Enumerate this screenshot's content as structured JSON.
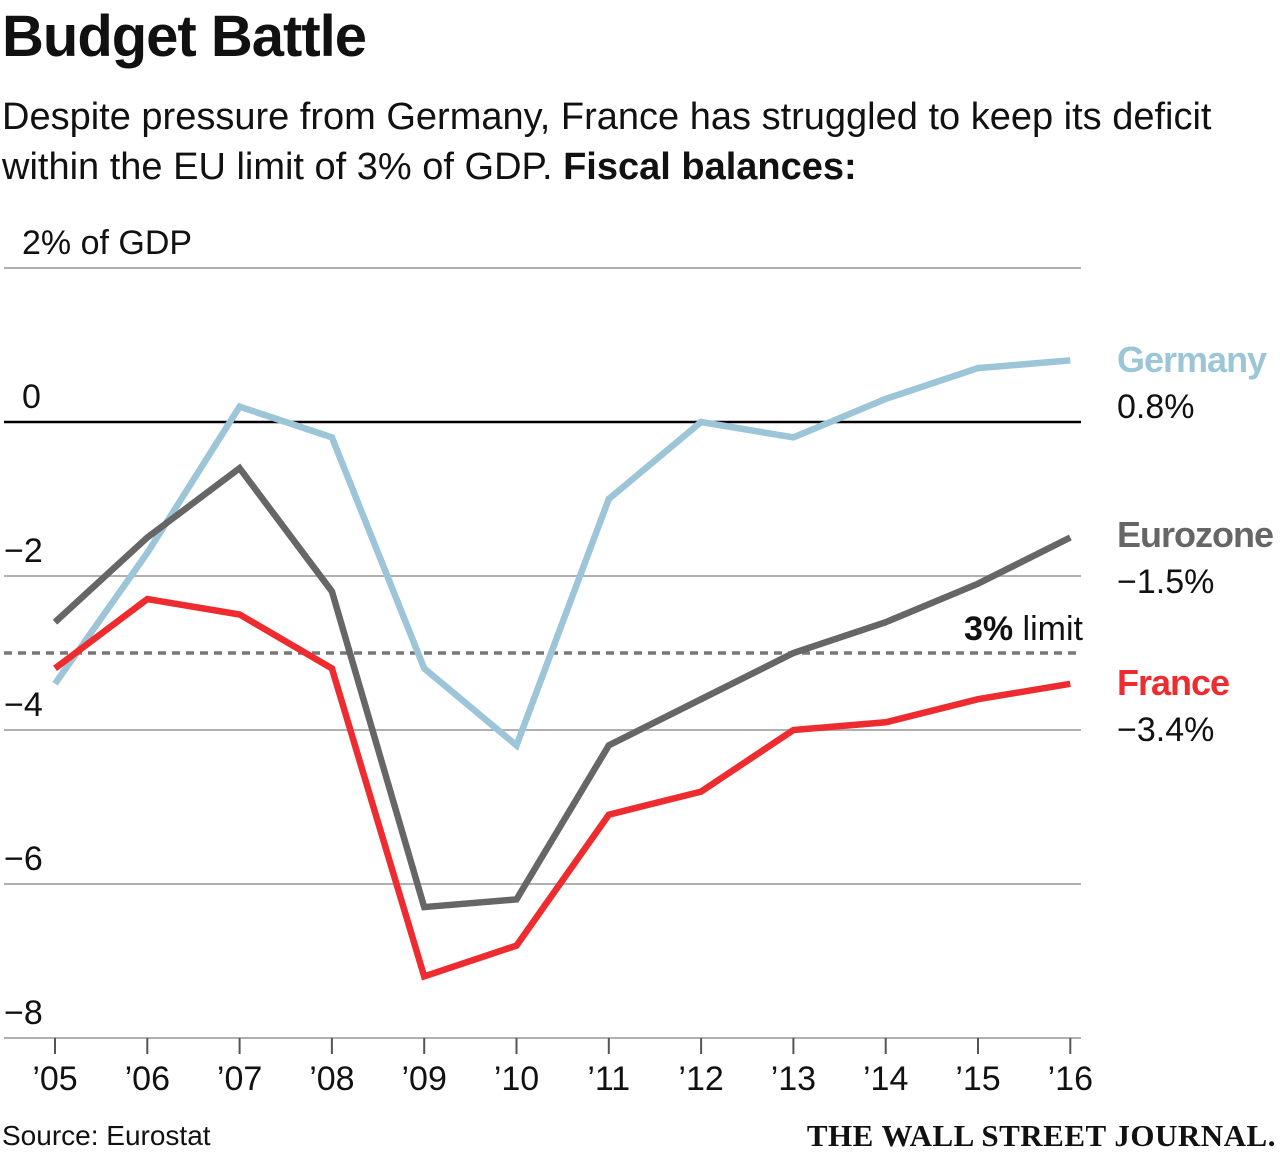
{
  "header": {
    "title": "Budget Battle",
    "subtitle": "Despite pressure from Germany, France has struggled to keep its deficit within the EU limit of 3% of GDP.",
    "subtitle_bold": "Fiscal balances:"
  },
  "footer": {
    "source": "Source: Eurostat",
    "brand": "THE WALL STREET JOURNAL."
  },
  "colors": {
    "germany": "#9cc5d8",
    "eurozone": "#666666",
    "france": "#ee2b2f",
    "grid": "#b0b0b0",
    "zero_line": "#000000",
    "limit_line": "#777777"
  },
  "chart_data": {
    "type": "line",
    "ylabel": "% of GDP",
    "ylim": [
      -8,
      2
    ],
    "y_ticks": [
      {
        "value": 2,
        "label": "2% of GDP"
      },
      {
        "value": 0,
        "label": "0"
      },
      {
        "value": -2,
        "label": "−2"
      },
      {
        "value": -4,
        "label": "−4"
      },
      {
        "value": -6,
        "label": "−6"
      },
      {
        "value": -8,
        "label": "−8"
      }
    ],
    "x": [
      "’05",
      "’06",
      "’07",
      "’08",
      "’09",
      "’10",
      "’11",
      "’12",
      "’13",
      "’14",
      "’15",
      "’16"
    ],
    "grid": true,
    "reference_line": {
      "value": -3,
      "label_bold": "3%",
      "label": " limit"
    },
    "series": [
      {
        "name": "Germany",
        "end_label": "0.8%",
        "color_key": "germany",
        "values": [
          -3.4,
          -1.7,
          0.2,
          -0.2,
          -3.2,
          -4.2,
          -1.0,
          0.0,
          -0.2,
          0.3,
          0.7,
          0.8
        ]
      },
      {
        "name": "Eurozone",
        "end_label": "−1.5%",
        "color_key": "eurozone",
        "values": [
          -2.6,
          -1.5,
          -0.6,
          -2.2,
          -6.3,
          -6.2,
          -4.2,
          -3.6,
          -3.0,
          -2.6,
          -2.1,
          -1.5
        ]
      },
      {
        "name": "France",
        "end_label": "−3.4%",
        "color_key": "france",
        "values": [
          -3.2,
          -2.3,
          -2.5,
          -3.2,
          -7.2,
          -6.8,
          -5.1,
          -4.8,
          -4.0,
          -3.9,
          -3.6,
          -3.4
        ]
      }
    ]
  }
}
